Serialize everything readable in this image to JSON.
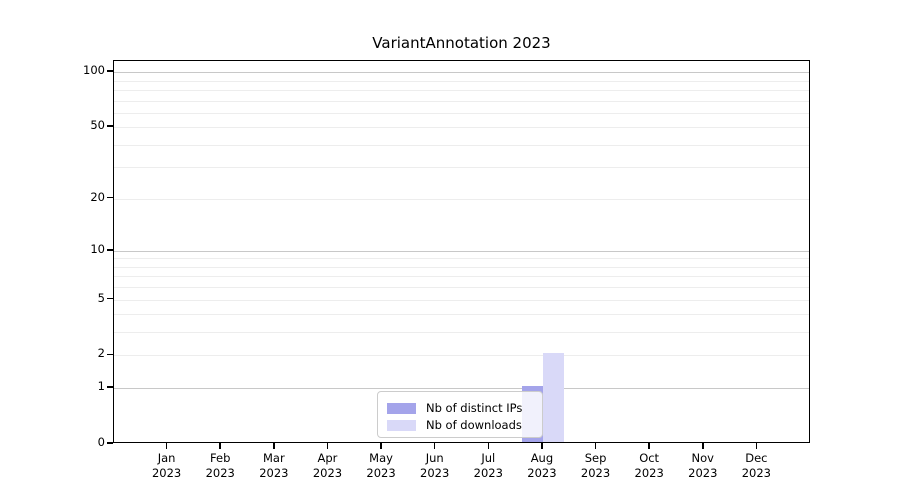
{
  "chart_data": {
    "type": "bar",
    "title": "VariantAnnotation 2023",
    "categories": [
      "Jan 2023",
      "Feb 2023",
      "Mar 2023",
      "Apr 2023",
      "May 2023",
      "Jun 2023",
      "Jul 2023",
      "Aug 2023",
      "Sep 2023",
      "Oct 2023",
      "Nov 2023",
      "Dec 2023"
    ],
    "series": [
      {
        "name": "Nb of distinct IPs",
        "color": "#a4a4ea",
        "values": [
          0,
          0,
          0,
          0,
          0,
          0,
          0,
          1,
          0,
          0,
          0,
          0
        ]
      },
      {
        "name": "Nb of downloads",
        "color": "#d9d9f8",
        "values": [
          0,
          0,
          0,
          0,
          0,
          0,
          0,
          2,
          0,
          0,
          0,
          0
        ]
      }
    ],
    "xlabel": "",
    "ylabel": "",
    "y_axis": {
      "scale": "log1p",
      "ticks": [
        0,
        1,
        2,
        5,
        10,
        20,
        50,
        100
      ],
      "ylim": [
        0,
        115
      ],
      "major_gridlines": [
        1,
        10,
        100
      ],
      "minor_gridlines": [
        2,
        3,
        4,
        5,
        6,
        7,
        8,
        9,
        20,
        30,
        40,
        50,
        60,
        70,
        80,
        90
      ]
    },
    "legend": {
      "position": "lower center inside plot",
      "entries": [
        "Nb of distinct IPs",
        "Nb of downloads"
      ]
    },
    "colors": {
      "frame": "#000000",
      "major_grid": "#c8c8c8",
      "minor_grid": "#ededed",
      "text": "#000000",
      "legend_border": "#cccccc"
    },
    "grid": "on"
  }
}
